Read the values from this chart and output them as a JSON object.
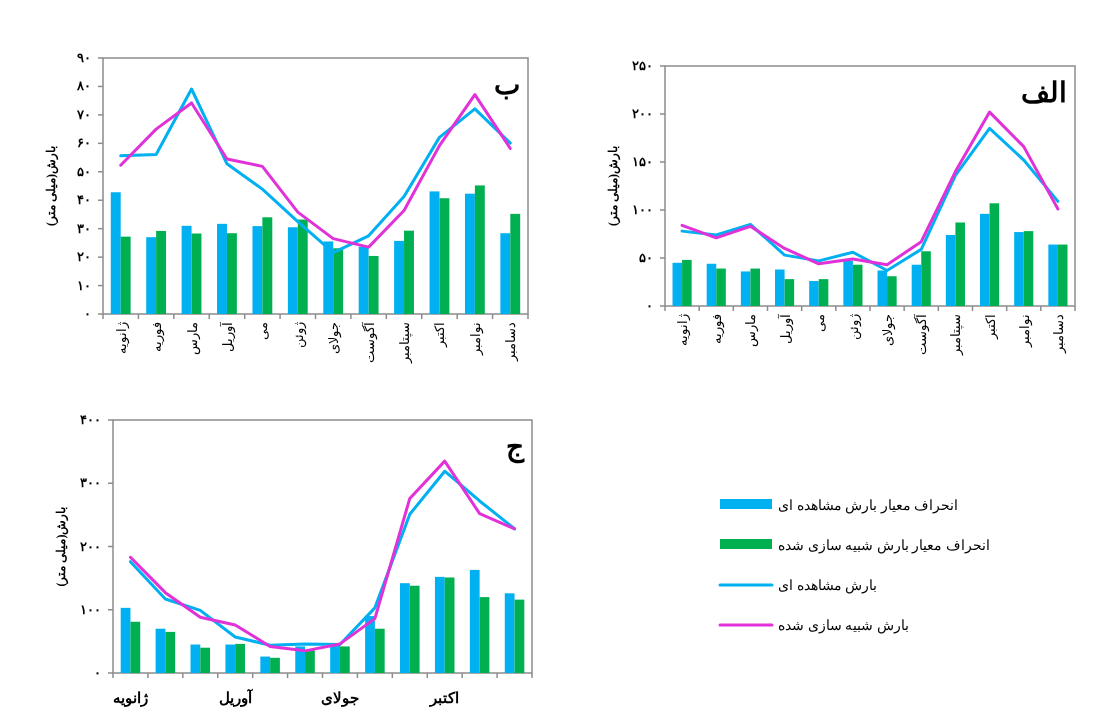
{
  "chart_data": [
    {
      "type": "bar",
      "title": "ب",
      "ylabel": "بارش(میلی متر)",
      "categories": [
        "ژانویه",
        "فوریه",
        "مارس",
        "آوریل",
        "می",
        "ژوئن",
        "جولای",
        "آگوست",
        "سپتامبر",
        "اکتبر",
        "نوامبر",
        "دسامبر"
      ],
      "ylim": [
        0,
        90
      ],
      "yticks": [
        {
          "value": 0,
          "label": "۰"
        },
        {
          "value": 10,
          "label": "۱۰"
        },
        {
          "value": 20,
          "label": "۲۰"
        },
        {
          "value": 30,
          "label": "۳۰"
        },
        {
          "value": 40,
          "label": "۴۰"
        },
        {
          "value": 50,
          "label": "۵۰"
        },
        {
          "value": 60,
          "label": "۶۰"
        },
        {
          "value": 70,
          "label": "۷۰"
        },
        {
          "value": 80,
          "label": "۸۰"
        },
        {
          "value": 90,
          "label": "۹۰"
        }
      ],
      "grid": false,
      "legend": false,
      "series": [
        {
          "color": "#00b0f0",
          "values": [
            42.8,
            27.0,
            31.0,
            31.7,
            30.9,
            30.5,
            25.5,
            23.7,
            25.7,
            43.1,
            42.3,
            28.4
          ]
        },
        {
          "color": "#00b050",
          "values": [
            27.2,
            29.2,
            28.3,
            28.4,
            34.0,
            33.2,
            23.1,
            20.4,
            29.3,
            40.7,
            45.2,
            35.2
          ]
        },
        {
          "type": "line",
          "color": "#00b0f0",
          "values": [
            55.6,
            56.1,
            79.1,
            52.8,
            43.9,
            32.5,
            21.6,
            27.5,
            41.3,
            62.1,
            72.1,
            60.1
          ]
        },
        {
          "type": "line",
          "color": "#e032d8",
          "values": [
            52.3,
            65.0,
            74.2,
            54.5,
            51.9,
            35.8,
            26.5,
            23.5,
            36.4,
            59.2,
            77.1,
            58.2
          ]
        }
      ]
    },
    {
      "type": "bar",
      "title": "الف",
      "ylabel": "بارش(میلی متر)",
      "categories": [
        "ژانویه",
        "فوریه",
        "مارس",
        "آوریل",
        "می",
        "ژوئن",
        "جولای",
        "آگوست",
        "سپتامبر",
        "اکتبر",
        "نوامبر",
        "دسامبر"
      ],
      "ylim": [
        0,
        250
      ],
      "yticks": [
        {
          "value": 0,
          "label": "۰"
        },
        {
          "value": 50,
          "label": "۵۰"
        },
        {
          "value": 100,
          "label": "۱۰۰"
        },
        {
          "value": 150,
          "label": "۱۵۰"
        },
        {
          "value": 200,
          "label": "۲۰۰"
        },
        {
          "value": 250,
          "label": "۲۵۰"
        }
      ],
      "grid": false,
      "legend": false,
      "series": [
        {
          "color": "#00b0f0",
          "values": [
            45,
            44,
            36,
            38,
            26,
            47,
            37,
            43,
            74,
            96,
            77,
            64
          ]
        },
        {
          "color": "#00b050",
          "values": [
            48,
            39,
            39,
            28,
            28,
            43,
            31,
            57,
            87,
            107,
            78,
            64
          ]
        },
        {
          "type": "line",
          "color": "#00b0f0",
          "values": [
            78,
            74,
            85,
            53,
            47,
            56,
            37,
            59,
            136,
            185,
            152,
            109
          ]
        },
        {
          "type": "line",
          "color": "#e032d8",
          "values": [
            84,
            71,
            83,
            60,
            44,
            49,
            43,
            67,
            140,
            202,
            166,
            101
          ]
        }
      ]
    },
    {
      "type": "bar",
      "title": "ج",
      "ylabel": "بارش(میلی متر)",
      "categories": [
        "ژانویه",
        null,
        null,
        "آوریل",
        null,
        null,
        "جولای",
        null,
        null,
        "اکتبر",
        null,
        null
      ],
      "ylim": [
        0,
        400
      ],
      "yticks": [
        {
          "value": 0,
          "label": "۰"
        },
        {
          "value": 100,
          "label": "۱۰۰"
        },
        {
          "value": 200,
          "label": "۲۰۰"
        },
        {
          "value": 300,
          "label": "۳۰۰"
        },
        {
          "value": 400,
          "label": "۴۰۰"
        }
      ],
      "grid": false,
      "legend": "right",
      "series": [
        {
          "name": "انحراف معیار بارش مشاهده ای",
          "color": "#00b0f0",
          "values": [
            103,
            70,
            45,
            45,
            26,
            42,
            46,
            90,
            142,
            152,
            163,
            126
          ]
        },
        {
          "name": "انحراف معیار بارش شبیه سازی شده",
          "color": "#00b050",
          "values": [
            81,
            65,
            40,
            46,
            24,
            36,
            42,
            70,
            138,
            151,
            120,
            116
          ]
        },
        {
          "type": "line",
          "name": "بارش مشاهده ای",
          "color": "#00b0f0",
          "values": [
            176,
            117,
            99,
            57,
            44,
            46,
            45,
            103,
            251,
            319,
            272,
            228
          ]
        },
        {
          "type": "line",
          "name": "بارش شبیه سازی شده",
          "color": "#e032d8",
          "values": [
            183,
            127,
            88,
            76,
            42,
            35,
            46,
            86,
            276,
            335,
            252,
            228
          ]
        }
      ]
    }
  ]
}
